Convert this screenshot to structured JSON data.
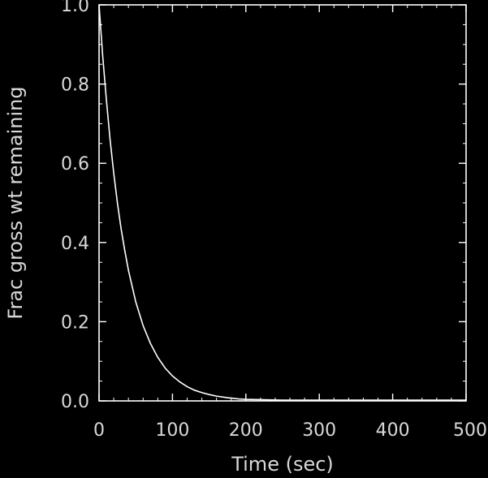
{
  "chart_data": {
    "type": "line",
    "title": "",
    "xlabel": "Time (sec)",
    "ylabel": "Frac gross wt remaining",
    "xlim": [
      0,
      500
    ],
    "ylim": [
      0,
      1
    ],
    "x_ticks": [
      0,
      100,
      200,
      300,
      400,
      500
    ],
    "x_tick_labels": [
      "0",
      "100",
      "200",
      "300",
      "400",
      "500"
    ],
    "y_ticks": [
      0,
      0.2,
      0.4,
      0.6,
      0.8,
      1
    ],
    "y_tick_labels": [
      "0.0",
      "0.2",
      "0.4",
      "0.6",
      "0.8",
      "1.0"
    ],
    "grid": false,
    "legend": "none",
    "colors": {
      "background": "#000000",
      "frame": "#ffffff",
      "line": "#ffffff",
      "text": "#d8d8d8"
    },
    "series": [
      {
        "x": [
          0,
          5,
          10,
          15,
          20,
          25,
          30,
          35,
          40,
          50,
          60,
          70,
          80,
          90,
          100,
          110,
          120,
          130,
          140,
          150,
          160,
          175,
          190,
          200,
          250,
          300,
          350,
          400,
          450,
          500
        ],
        "y": [
          1.0,
          0.87,
          0.76,
          0.66,
          0.575,
          0.5,
          0.435,
          0.38,
          0.33,
          0.25,
          0.19,
          0.145,
          0.11,
          0.083,
          0.063,
          0.048,
          0.036,
          0.027,
          0.021,
          0.016,
          0.012,
          0.008,
          0.005,
          0.004,
          0.002,
          0.002,
          0.002,
          0.002,
          0.002,
          0.002
        ]
      }
    ]
  }
}
